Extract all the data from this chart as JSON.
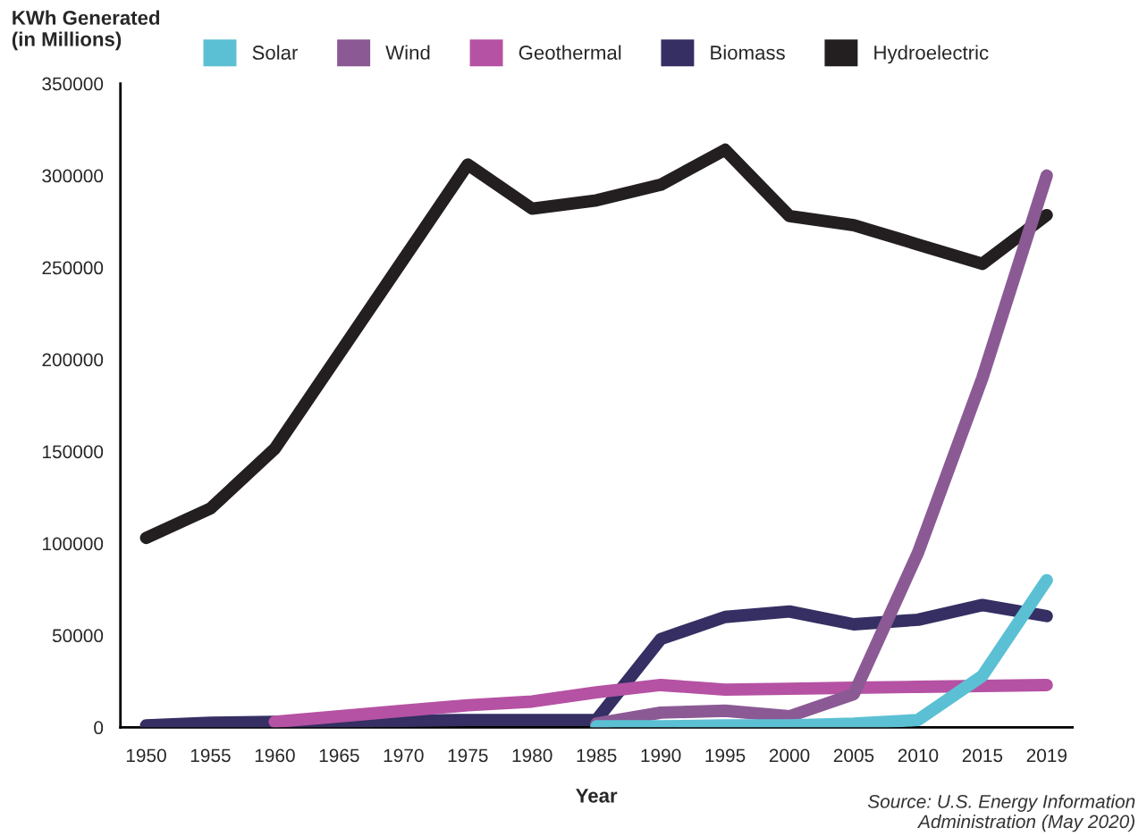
{
  "chart_data": {
    "type": "line",
    "ylabel": "KWh Generated\n(in Millions)",
    "xlabel": "Year",
    "categories": [
      "1950",
      "1955",
      "1960",
      "1965",
      "1970",
      "1975",
      "1980",
      "1985",
      "1990",
      "1995",
      "2000",
      "2005",
      "2010",
      "2015",
      "2019"
    ],
    "series": [
      {
        "name": "Solar",
        "color": "#5bc0d3",
        "values": [
          null,
          null,
          null,
          null,
          null,
          null,
          null,
          500,
          500,
          1000,
          1000,
          2000,
          4000,
          28000,
          80000
        ]
      },
      {
        "name": "Wind",
        "color": "#8b5a94",
        "values": [
          null,
          null,
          null,
          null,
          null,
          null,
          null,
          2000,
          8000,
          9000,
          6000,
          18000,
          95000,
          190000,
          300000
        ]
      },
      {
        "name": "Geothermal",
        "color": "#b552a3",
        "values": [
          null,
          null,
          3000,
          6000,
          9000,
          12000,
          14000,
          19000,
          23000,
          20500,
          21000,
          21500,
          22000,
          22500,
          23000
        ]
      },
      {
        "name": "Biomass",
        "color": "#352f63",
        "values": [
          1000,
          2500,
          3000,
          3000,
          3500,
          4000,
          4000,
          4000,
          48000,
          60000,
          63000,
          56000,
          58500,
          66500,
          60500
        ]
      },
      {
        "name": "Hydroelectric",
        "color": "#231f20",
        "values": [
          103000,
          119000,
          151500,
          203000,
          254500,
          306000,
          282000,
          286500,
          295000,
          314000,
          278000,
          273000,
          262500,
          252000,
          278500
        ]
      }
    ],
    "ylim": [
      0,
      350000
    ],
    "yticks": [
      0,
      50000,
      100000,
      150000,
      200000,
      250000,
      300000,
      350000
    ],
    "grid": false,
    "legend": "top",
    "marker": "none",
    "line_style": "solid",
    "annotations": [
      "Source: U.S. Energy Information\nAdministration (May 2020)"
    ]
  }
}
